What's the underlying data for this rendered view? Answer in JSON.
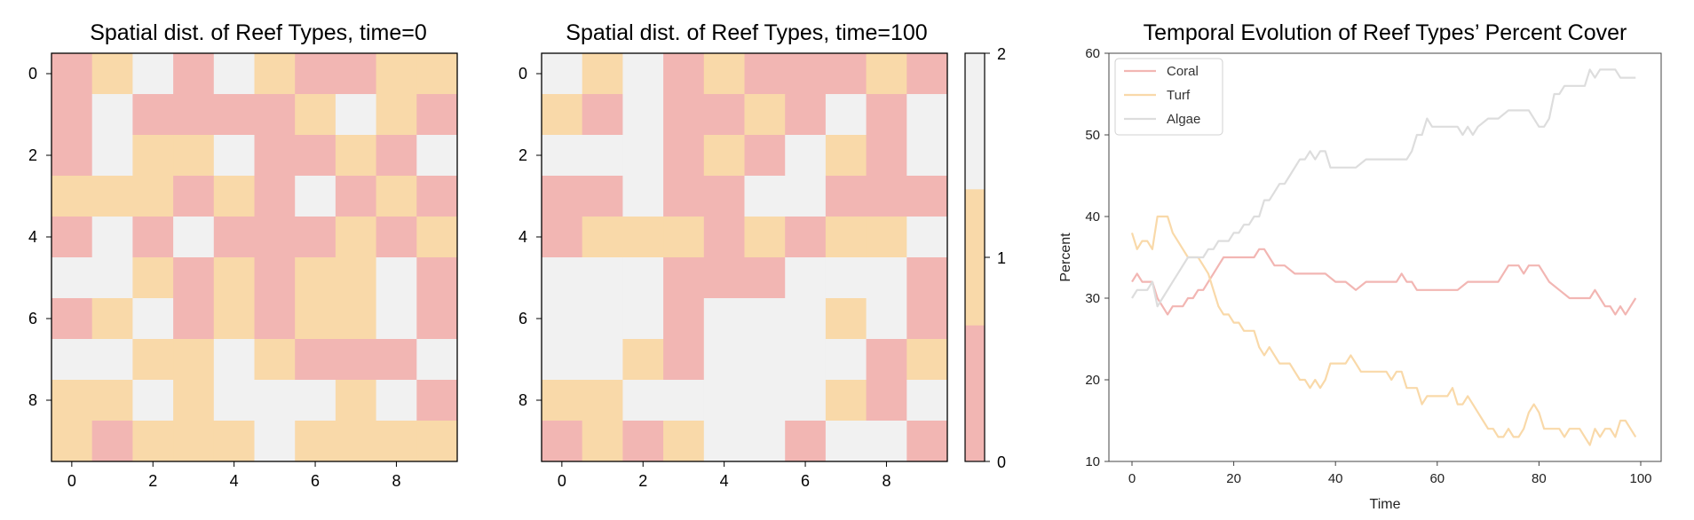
{
  "colors": {
    "coral": "#f2b6b3",
    "turf": "#f9d9a9",
    "algae": "#f1f1f1"
  },
  "chart_data": [
    {
      "type": "heatmap",
      "title": "Spatial dist. of Reef Types, time=0",
      "xticks": [
        "0",
        "2",
        "4",
        "6",
        "8"
      ],
      "yticks": [
        "0",
        "2",
        "4",
        "6",
        "8"
      ],
      "grid": [
        [
          0,
          1,
          2,
          0,
          2,
          1,
          0,
          0,
          1,
          1
        ],
        [
          0,
          2,
          0,
          0,
          0,
          0,
          1,
          2,
          1,
          0
        ],
        [
          0,
          2,
          1,
          1,
          2,
          0,
          0,
          1,
          0,
          2
        ],
        [
          1,
          1,
          1,
          0,
          1,
          0,
          2,
          0,
          1,
          0
        ],
        [
          0,
          2,
          0,
          2,
          0,
          0,
          0,
          1,
          0,
          1
        ],
        [
          2,
          2,
          1,
          0,
          1,
          0,
          1,
          1,
          2,
          0
        ],
        [
          0,
          1,
          2,
          0,
          1,
          0,
          1,
          1,
          2,
          0
        ],
        [
          2,
          2,
          1,
          1,
          2,
          1,
          0,
          0,
          0,
          2
        ],
        [
          1,
          1,
          2,
          1,
          2,
          2,
          2,
          1,
          2,
          0
        ],
        [
          1,
          0,
          1,
          1,
          1,
          2,
          1,
          1,
          1,
          1
        ]
      ]
    },
    {
      "type": "heatmap",
      "title": "Spatial dist. of Reef Types, time=100",
      "xticks": [
        "0",
        "2",
        "4",
        "6",
        "8"
      ],
      "yticks": [
        "0",
        "2",
        "4",
        "6",
        "8"
      ],
      "colorbar": {
        "ticks": [
          "0",
          "1",
          "2"
        ],
        "range": [
          0,
          2
        ]
      },
      "grid": [
        [
          2,
          1,
          2,
          0,
          1,
          0,
          0,
          0,
          1,
          0
        ],
        [
          1,
          0,
          2,
          0,
          0,
          1,
          0,
          2,
          0,
          2
        ],
        [
          2,
          2,
          2,
          0,
          1,
          0,
          2,
          1,
          0,
          2
        ],
        [
          0,
          0,
          2,
          0,
          0,
          2,
          2,
          0,
          0,
          0
        ],
        [
          0,
          1,
          1,
          1,
          0,
          1,
          0,
          1,
          1,
          2
        ],
        [
          2,
          2,
          2,
          0,
          0,
          0,
          2,
          2,
          2,
          0
        ],
        [
          2,
          2,
          2,
          0,
          2,
          2,
          2,
          1,
          2,
          0
        ],
        [
          2,
          2,
          1,
          0,
          2,
          2,
          2,
          2,
          0,
          1
        ],
        [
          1,
          1,
          2,
          2,
          2,
          2,
          2,
          1,
          0,
          2
        ],
        [
          0,
          1,
          0,
          1,
          2,
          2,
          0,
          2,
          2,
          0
        ]
      ]
    },
    {
      "type": "line",
      "title": "Temporal Evolution of Reef Types’ Percent Cover",
      "xlabel": "Time",
      "ylabel": "Percent",
      "xlim": [
        0,
        100
      ],
      "ylim": [
        10,
        60
      ],
      "xticks": [
        "0",
        "20",
        "40",
        "60",
        "80",
        "100"
      ],
      "yticks": [
        "10",
        "20",
        "30",
        "40",
        "50",
        "60"
      ],
      "legend": "top-left",
      "series": [
        {
          "name": "Coral",
          "color": "#f2b6b3",
          "x": [
            0,
            1,
            2,
            3,
            4,
            5,
            6,
            7,
            8,
            9,
            10,
            11,
            12,
            13,
            14,
            15,
            16,
            17,
            18,
            19,
            20,
            22,
            24,
            25,
            26,
            27,
            28,
            30,
            32,
            34,
            36,
            38,
            40,
            42,
            44,
            46,
            48,
            50,
            52,
            53,
            54,
            55,
            56,
            58,
            60,
            62,
            64,
            66,
            68,
            70,
            72,
            74,
            75,
            76,
            77,
            78,
            79,
            80,
            82,
            84,
            86,
            88,
            90,
            91,
            92,
            93,
            94,
            95,
            96,
            97,
            98,
            99
          ],
          "y": [
            32,
            33,
            32,
            32,
            32,
            30,
            29,
            28,
            29,
            29,
            29,
            30,
            30,
            31,
            31,
            32,
            33,
            34,
            35,
            35,
            35,
            35,
            35,
            36,
            36,
            35,
            34,
            34,
            33,
            33,
            33,
            33,
            32,
            32,
            31,
            32,
            32,
            32,
            32,
            33,
            32,
            32,
            31,
            31,
            31,
            31,
            31,
            32,
            32,
            32,
            32,
            34,
            34,
            34,
            33,
            34,
            34,
            34,
            32,
            31,
            30,
            30,
            30,
            31,
            30,
            29,
            29,
            28,
            29,
            28,
            29,
            30
          ]
        },
        {
          "name": "Turf",
          "color": "#f9d9a9",
          "x": [
            0,
            1,
            2,
            3,
            4,
            5,
            6,
            7,
            8,
            9,
            10,
            11,
            12,
            13,
            14,
            15,
            16,
            17,
            18,
            19,
            20,
            21,
            22,
            23,
            24,
            25,
            26,
            27,
            28,
            29,
            30,
            31,
            32,
            33,
            34,
            35,
            36,
            37,
            38,
            39,
            40,
            41,
            42,
            43,
            44,
            45,
            46,
            47,
            48,
            49,
            50,
            51,
            52,
            53,
            54,
            55,
            56,
            57,
            58,
            59,
            60,
            61,
            62,
            63,
            64,
            65,
            66,
            67,
            68,
            69,
            70,
            71,
            72,
            73,
            74,
            75,
            76,
            77,
            78,
            79,
            80,
            81,
            82,
            83,
            84,
            85,
            86,
            87,
            88,
            89,
            90,
            91,
            92,
            93,
            94,
            95,
            96,
            97,
            98,
            99
          ],
          "y": [
            38,
            36,
            37,
            37,
            36,
            40,
            40,
            40,
            38,
            37,
            36,
            35,
            35,
            35,
            34,
            33,
            31,
            29,
            28,
            28,
            27,
            27,
            26,
            26,
            26,
            24,
            23,
            24,
            23,
            22,
            22,
            22,
            21,
            20,
            20,
            19,
            20,
            19,
            20,
            22,
            22,
            22,
            22,
            23,
            22,
            21,
            21,
            21,
            21,
            21,
            21,
            20,
            21,
            21,
            19,
            19,
            19,
            17,
            18,
            18,
            18,
            18,
            18,
            19,
            17,
            17,
            18,
            17,
            16,
            15,
            14,
            14,
            13,
            13,
            14,
            13,
            13,
            14,
            16,
            17,
            16,
            14,
            14,
            14,
            14,
            13,
            14,
            14,
            14,
            13,
            12,
            14,
            13,
            14,
            14,
            13,
            15,
            15,
            14,
            13
          ]
        },
        {
          "name": "Algae",
          "color": "#dddddd",
          "x": [
            0,
            1,
            2,
            3,
            4,
            5,
            6,
            7,
            8,
            9,
            10,
            11,
            12,
            13,
            14,
            15,
            16,
            17,
            18,
            19,
            20,
            21,
            22,
            23,
            24,
            25,
            26,
            27,
            28,
            29,
            30,
            31,
            32,
            33,
            34,
            35,
            36,
            37,
            38,
            39,
            40,
            42,
            44,
            46,
            48,
            50,
            52,
            54,
            55,
            56,
            57,
            58,
            59,
            60,
            62,
            64,
            65,
            66,
            67,
            68,
            70,
            72,
            74,
            76,
            78,
            79,
            80,
            81,
            82,
            83,
            84,
            85,
            86,
            88,
            89,
            90,
            91,
            92,
            93,
            94,
            95,
            96,
            97,
            98,
            99
          ],
          "y": [
            30,
            31,
            31,
            31,
            32,
            29,
            30,
            31,
            32,
            33,
            34,
            35,
            35,
            35,
            35,
            36,
            36,
            37,
            37,
            37,
            38,
            38,
            39,
            39,
            40,
            40,
            42,
            42,
            43,
            44,
            44,
            45,
            46,
            47,
            47,
            48,
            47,
            48,
            48,
            46,
            46,
            46,
            46,
            47,
            47,
            47,
            47,
            47,
            48,
            50,
            50,
            52,
            51,
            51,
            51,
            51,
            50,
            51,
            50,
            51,
            52,
            52,
            53,
            53,
            53,
            52,
            51,
            51,
            52,
            55,
            55,
            56,
            56,
            56,
            56,
            58,
            57,
            58,
            58,
            58,
            58,
            57,
            57,
            57,
            57
          ]
        }
      ]
    }
  ]
}
